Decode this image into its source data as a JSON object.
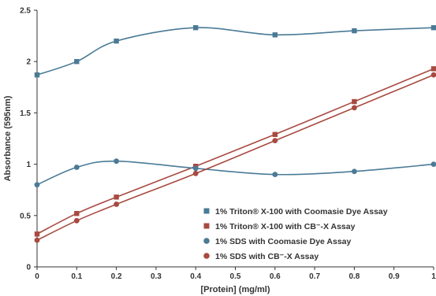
{
  "chart_data": {
    "type": "line",
    "xlabel": "[Protein] (mg/ml)",
    "ylabel": "Absorbance (595nm)",
    "xlim": [
      0,
      1
    ],
    "ylim": [
      0,
      2.5
    ],
    "x_ticks": [
      "0",
      "0.1",
      "0.2",
      "0.3",
      "0.4",
      "0.5",
      "0.6",
      "0.7",
      "0.8",
      "0.9",
      "1"
    ],
    "y_ticks": [
      "0",
      "0.5",
      "1",
      "1.5",
      "2",
      "2.5"
    ],
    "grid": false,
    "legend_position": "bottom-right",
    "series": [
      {
        "name": "1% Triton® X-100 with Coomasie Dye Assay",
        "marker": "square",
        "color": "#4a7a96",
        "x": [
          0,
          0.1,
          0.2,
          0.4,
          0.6,
          0.8,
          1.0
        ],
        "y": [
          1.87,
          2.0,
          2.2,
          2.33,
          2.26,
          2.3,
          2.33
        ]
      },
      {
        "name": "1% Triton® X-100 with CB⁻-X Assay",
        "marker": "square",
        "color": "#a84a40",
        "x": [
          0,
          0.1,
          0.2,
          0.4,
          0.6,
          0.8,
          1.0
        ],
        "y": [
          0.32,
          0.52,
          0.68,
          0.98,
          1.29,
          1.61,
          1.93
        ]
      },
      {
        "name": "1% SDS with Coomasie Dye Assay",
        "marker": "circle",
        "color": "#4a7a96",
        "x": [
          0,
          0.1,
          0.2,
          0.4,
          0.6,
          0.8,
          1.0
        ],
        "y": [
          0.8,
          0.97,
          1.03,
          0.96,
          0.9,
          0.93,
          1.0
        ]
      },
      {
        "name": "1% SDS with CB⁻-X Assay",
        "marker": "circle",
        "color": "#a84a40",
        "x": [
          0,
          0.1,
          0.2,
          0.4,
          0.6,
          0.8,
          1.0
        ],
        "y": [
          0.26,
          0.45,
          0.61,
          0.91,
          1.23,
          1.55,
          1.87
        ]
      }
    ]
  }
}
